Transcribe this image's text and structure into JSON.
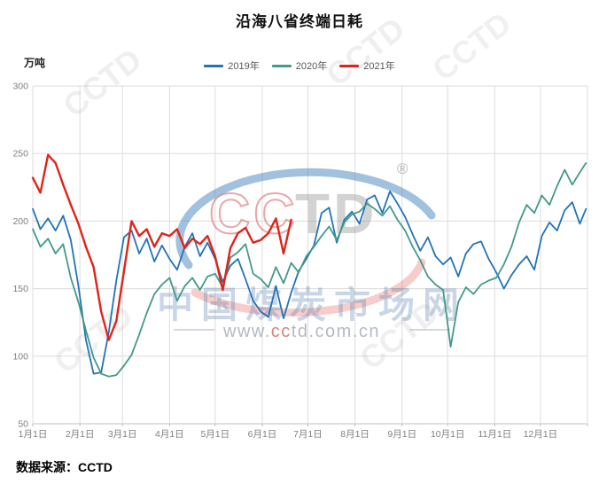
{
  "title": "沿海八省终端日耗",
  "unit_label": "万吨",
  "source": "数据来源：CCTD",
  "legend": [
    {
      "label": "2019年",
      "color": "#2273b8"
    },
    {
      "label": "2020年",
      "color": "#43998a"
    },
    {
      "label": "2021年",
      "color": "#e02417"
    }
  ],
  "watermark": {
    "ghost_text": "CCTD",
    "logo_cc": "CC",
    "logo_td": "TD",
    "registered_mark": "®",
    "brand_cn": "中国煤炭市场网",
    "url_pre": "www.",
    "url_cc": "cc",
    "url_rest": "td.com.cn"
  },
  "chart_data": {
    "type": "line",
    "title": "沿海八省终端日耗",
    "ylabel": "万吨",
    "ylim": [
      50,
      300
    ],
    "y_ticks": [
      300,
      250,
      200,
      150,
      100,
      50
    ],
    "x_unit": "day_of_year",
    "xlim": [
      1,
      366
    ],
    "x_tick_days": [
      1,
      32,
      60,
      91,
      121,
      152,
      182,
      213,
      244,
      274,
      305,
      335
    ],
    "x_tick_labels": [
      "1月1日",
      "2月1日",
      "3月1日",
      "4月1日",
      "5月1日",
      "6月1日",
      "7月1日",
      "8月1日",
      "9月1日",
      "10月1日",
      "11月1日",
      "12月1日"
    ],
    "grid": true,
    "legend_position": "top-center",
    "x": [
      1,
      6,
      11,
      16,
      21,
      26,
      31,
      36,
      41,
      46,
      51,
      56,
      61,
      66,
      71,
      76,
      81,
      86,
      91,
      96,
      101,
      106,
      111,
      116,
      121,
      126,
      131,
      136,
      141,
      146,
      151,
      156,
      161,
      166,
      171,
      176,
      181,
      186,
      191,
      196,
      201,
      206,
      211,
      216,
      221,
      226,
      231,
      236,
      241,
      246,
      251,
      256,
      261,
      266,
      271,
      276,
      281,
      286,
      291,
      296,
      301,
      306,
      311,
      316,
      321,
      326,
      331,
      336,
      341,
      346,
      351,
      356,
      361,
      365
    ],
    "series": [
      {
        "name": "2019年",
        "color": "#2273b8",
        "width": 1.8,
        "values": [
          209,
          194,
          202,
          193,
          204,
          186,
          152,
          112,
          87,
          88,
          118,
          156,
          188,
          193,
          176,
          187,
          170,
          182,
          172,
          164,
          181,
          191,
          174,
          184,
          172,
          155,
          167,
          172,
          157,
          141,
          133,
          129,
          152,
          128,
          147,
          163,
          172,
          182,
          206,
          210,
          184,
          201,
          207,
          198,
          216,
          219,
          206,
          222,
          213,
          203,
          190,
          178,
          188,
          174,
          168,
          173,
          159,
          176,
          183,
          185,
          172,
          162,
          150,
          160,
          168,
          174,
          164,
          189,
          199,
          193,
          208,
          214,
          198,
          209
        ]
      },
      {
        "name": "2020年",
        "color": "#43998a",
        "width": 1.8,
        "values": [
          194,
          181,
          187,
          176,
          183,
          158,
          140,
          119,
          99,
          87,
          85,
          86,
          93,
          101,
          116,
          132,
          146,
          153,
          158,
          141,
          152,
          158,
          149,
          159,
          161,
          151,
          173,
          177,
          183,
          161,
          157,
          151,
          166,
          154,
          169,
          162,
          174,
          181,
          189,
          196,
          186,
          199,
          205,
          207,
          213,
          209,
          204,
          211,
          201,
          193,
          181,
          171,
          159,
          153,
          149,
          107,
          140,
          151,
          146,
          153,
          156,
          158,
          168,
          181,
          199,
          212,
          206,
          219,
          212,
          226,
          238,
          227,
          236,
          243
        ]
      },
      {
        "name": "2021年",
        "color": "#e02417",
        "width": 2.4,
        "x": [
          1,
          6,
          11,
          16,
          21,
          26,
          31,
          36,
          41,
          46,
          51,
          56,
          61,
          66,
          71,
          76,
          81,
          86,
          91,
          96,
          101,
          106,
          111,
          116,
          121,
          126,
          131,
          136,
          141,
          146,
          151,
          156,
          161,
          166,
          171
        ],
        "values": [
          232,
          221,
          249,
          243,
          227,
          212,
          198,
          181,
          166,
          133,
          112,
          126,
          163,
          200,
          189,
          194,
          181,
          191,
          189,
          194,
          180,
          187,
          183,
          189,
          174,
          149,
          180,
          191,
          195,
          184,
          186,
          191,
          202,
          176,
          201
        ]
      }
    ]
  }
}
